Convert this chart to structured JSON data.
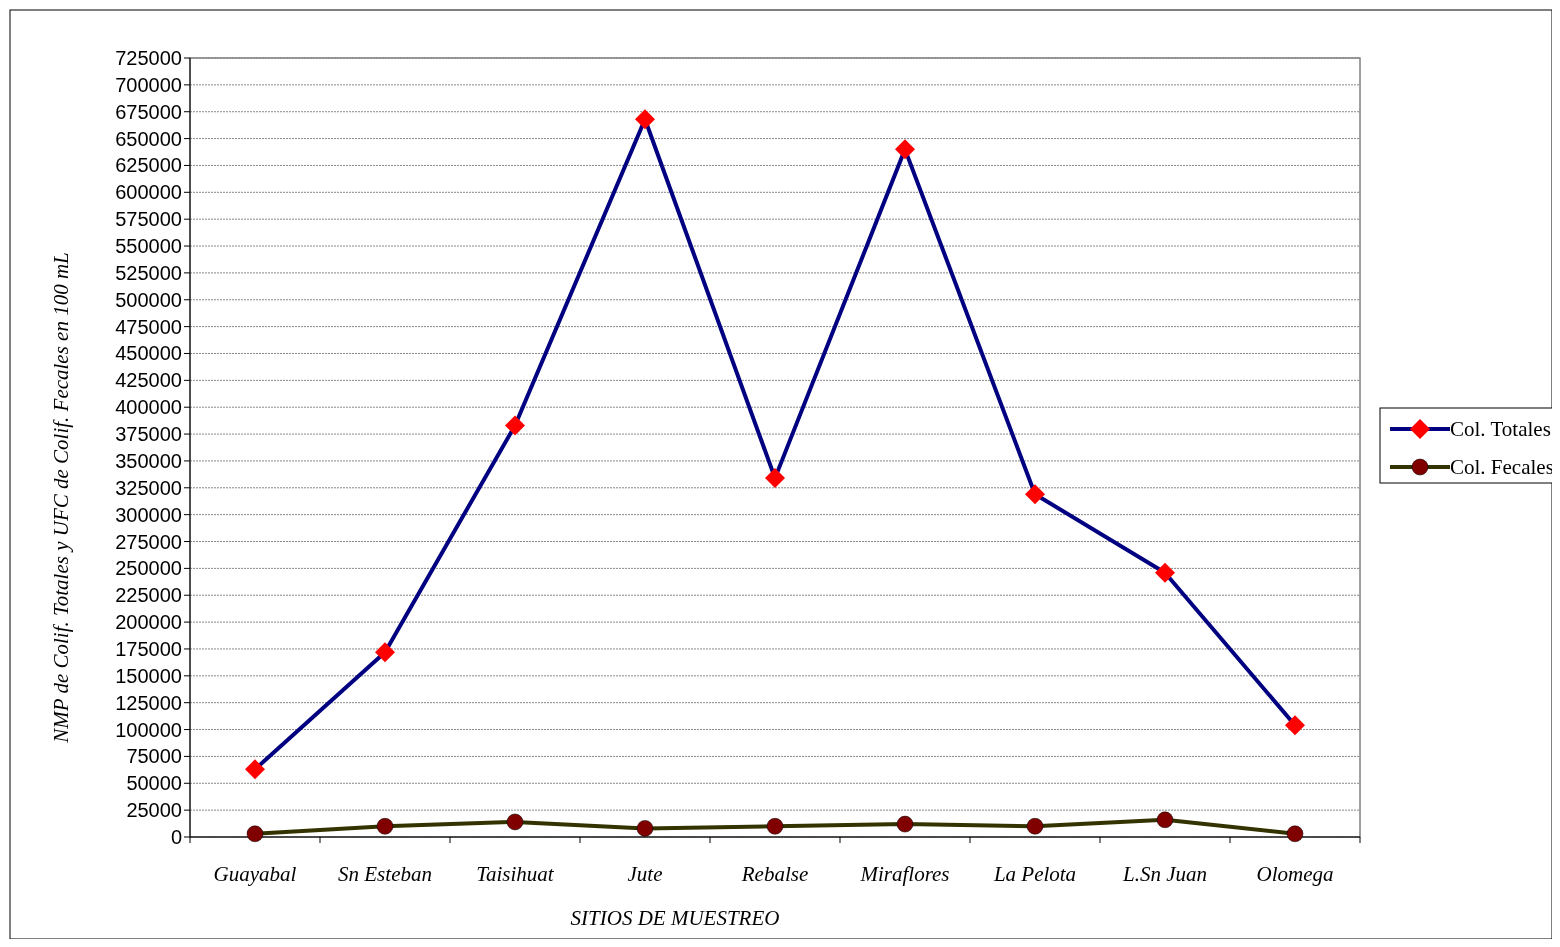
{
  "chart_data": {
    "type": "line",
    "xlabel": "SITIOS DE MUESTREO",
    "ylabel": "NMP de Colif. Totales y UFC de Colif. Fecales en 100 mL",
    "categories": [
      "Guayabal",
      "Sn Esteban",
      "Taisihuat",
      "Jute",
      "Rebalse",
      "Miraflores",
      "La Pelota",
      "L.Sn Juan",
      "Olomega"
    ],
    "series": [
      {
        "name": "Col. Totales",
        "color": "#000080",
        "colors": [
          "#ff0000",
          "#ff0000",
          "#ff0000",
          "#ff0000",
          "#ff0000",
          "#ff0000",
          "#ff0000",
          "#ff0000",
          "#ff0000"
        ],
        "marker": "diamond",
        "values": [
          63000,
          172000,
          383000,
          668000,
          334000,
          640000,
          319000,
          246000,
          104000
        ]
      },
      {
        "name": "Col. Fecales",
        "color": "#333300",
        "colors": [
          "#800000",
          "#800000",
          "#800000",
          "#800000",
          "#800000",
          "#800000",
          "#800000",
          "#800000",
          "#800000"
        ],
        "marker": "circle",
        "values": [
          3000,
          10000,
          14000,
          8000,
          10000,
          12000,
          10000,
          16000,
          3000
        ]
      }
    ],
    "ylim": [
      0,
      725000
    ],
    "yticks": [
      0,
      25000,
      50000,
      75000,
      100000,
      125000,
      150000,
      175000,
      200000,
      225000,
      250000,
      275000,
      300000,
      325000,
      350000,
      375000,
      400000,
      425000,
      450000,
      475000,
      500000,
      525000,
      550000,
      575000,
      600000,
      625000,
      650000,
      675000,
      700000,
      725000
    ],
    "grid": "y",
    "legend": "right",
    "line_style": "solid"
  }
}
